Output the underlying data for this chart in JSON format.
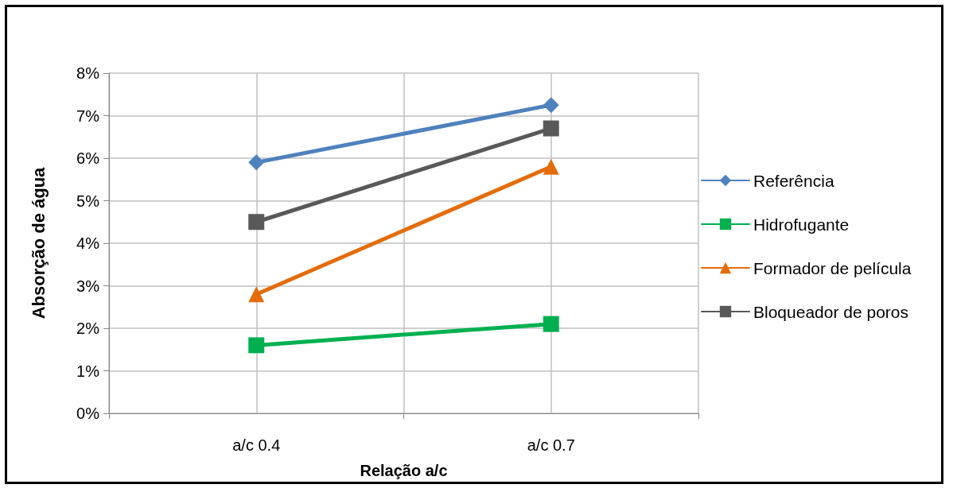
{
  "chart_data": {
    "type": "line",
    "xlabel": "Relação a/c",
    "ylabel": "Absorção de água",
    "categories": [
      "a/c 0.4",
      "a/c 0.7"
    ],
    "series": [
      {
        "name": "Referência",
        "color": "#4f81bd",
        "marker": "diamond",
        "values": [
          5.9,
          7.25
        ]
      },
      {
        "name": "Hidrofugante",
        "color": "#00b050",
        "marker": "square",
        "values": [
          1.6,
          2.1
        ]
      },
      {
        "name": "Formador de película",
        "color": "#e46c0a",
        "marker": "triangle",
        "values": [
          2.8,
          5.8
        ]
      },
      {
        "name": "Bloqueador de poros",
        "color": "#595959",
        "marker": "square",
        "values": [
          4.5,
          6.7
        ]
      }
    ],
    "ylim": [
      0,
      8
    ],
    "yticks": [
      {
        "value": 0,
        "label": "0%"
      },
      {
        "value": 1,
        "label": "1%"
      },
      {
        "value": 2,
        "label": "2%"
      },
      {
        "value": 3,
        "label": "3%"
      },
      {
        "value": 4,
        "label": "4%"
      },
      {
        "value": 5,
        "label": "5%"
      },
      {
        "value": 6,
        "label": "6%"
      },
      {
        "value": 7,
        "label": "7%"
      },
      {
        "value": 8,
        "label": "8%"
      }
    ],
    "grid": true,
    "legend": "right",
    "line_style": "solid"
  }
}
